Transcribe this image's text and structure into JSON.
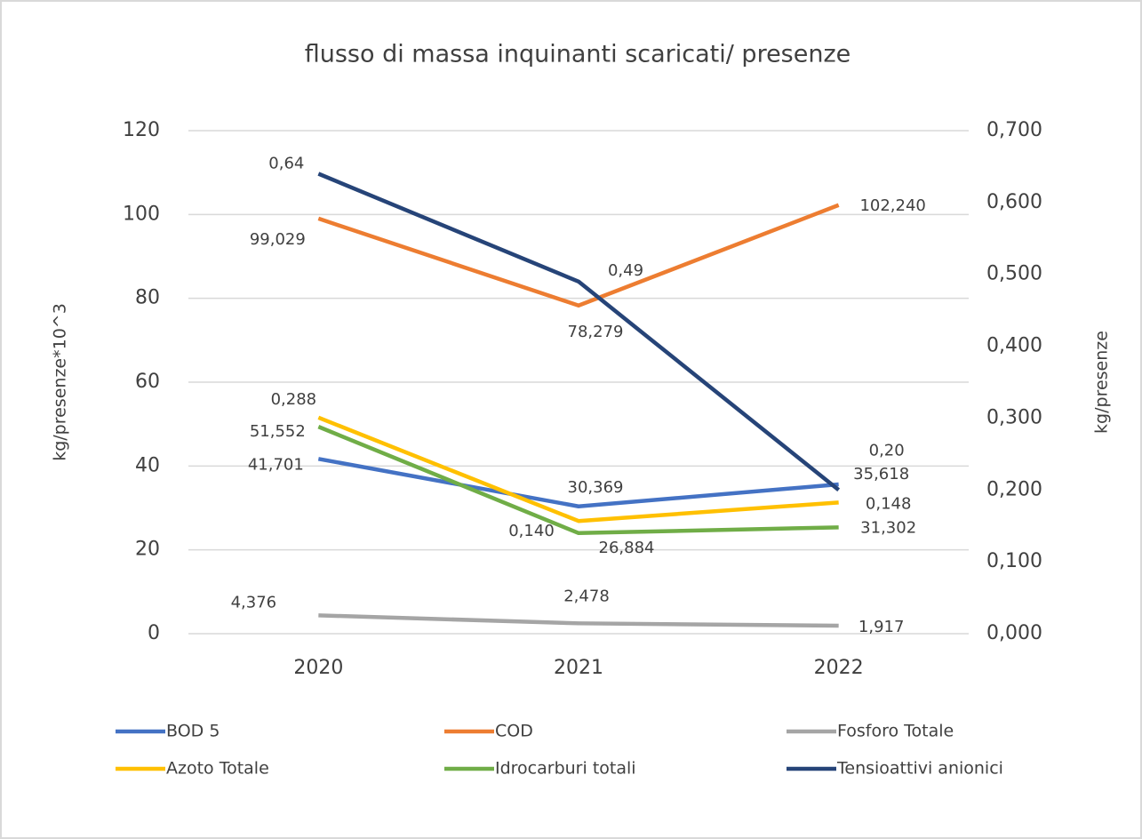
{
  "chart_data": {
    "type": "line",
    "title": "flusso di massa inquinanti scaricati/ presenze",
    "ylabel": "kg/presenze*10^3",
    "y2label": "kg/presenze",
    "categories": [
      "2020",
      "2021",
      "2022"
    ],
    "ylim": [
      0,
      120
    ],
    "yticks": [
      0,
      20,
      40,
      60,
      80,
      100,
      120
    ],
    "y2lim": [
      0,
      0.7
    ],
    "y2ticks": [
      {
        "value": 0,
        "label": "0,000"
      },
      {
        "value": 0.1,
        "label": "0,100"
      },
      {
        "value": 0.2,
        "label": "0,200"
      },
      {
        "value": 0.3,
        "label": "0,300"
      },
      {
        "value": 0.4,
        "label": "0,400"
      },
      {
        "value": 0.5,
        "label": "0,500"
      },
      {
        "value": 0.6,
        "label": "0,600"
      },
      {
        "value": 0.7,
        "label": "0,700"
      }
    ],
    "grid": true,
    "legend": "bottom",
    "series": [
      {
        "name": "BOD 5",
        "color": "#4472c4",
        "values": [
          41.701,
          30.369,
          35.618
        ],
        "value_labels": [
          "41,701",
          "30,369",
          "35,618"
        ]
      },
      {
        "name": "COD",
        "color": "#ed7d31",
        "values": [
          99.029,
          78.279,
          102.24
        ],
        "value_labels": [
          "99,029",
          "78,279",
          "102,240"
        ]
      },
      {
        "name": "Fosforo Totale",
        "color": "#a5a5a5",
        "values": [
          4.376,
          2.478,
          1.917
        ],
        "value_labels": [
          "4,376",
          "2,478",
          "1,917"
        ]
      },
      {
        "name": "Azoto Totale",
        "color": "#ffc000",
        "values": [
          51.552,
          26.884,
          31.302
        ],
        "value_labels": [
          "51,552",
          "26,884",
          "31,302"
        ]
      },
      {
        "name": "Idrocarburi totali",
        "color": "#70ad47",
        "axis": "y2",
        "values": [
          0.288,
          0.14,
          0.148
        ],
        "value_labels": [
          "0,288",
          "0,140",
          "0,148"
        ]
      },
      {
        "name": "Tensioattivi anionici",
        "color": "#264478",
        "axis": "y2",
        "values": [
          0.64,
          0.49,
          0.2
        ],
        "value_labels": [
          "0,64",
          "0,49",
          "0,20"
        ]
      }
    ]
  }
}
